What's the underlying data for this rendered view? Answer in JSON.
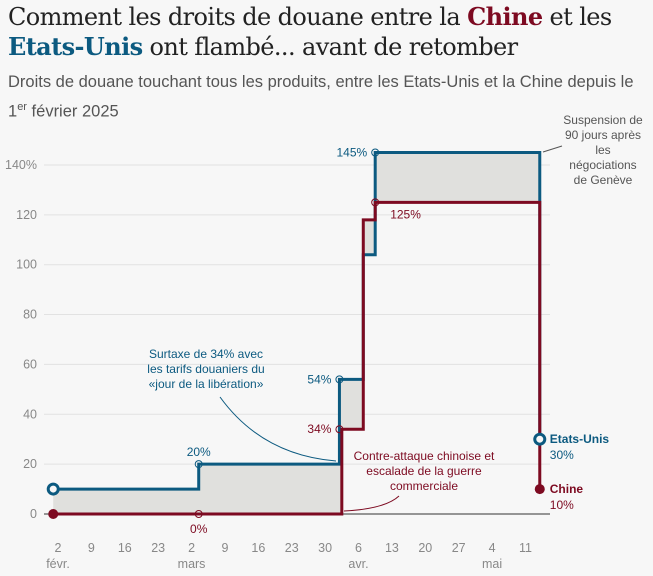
{
  "title": {
    "part1": "Comment les droits de douane entre la ",
    "china": "Chine",
    "part2": " et les ",
    "us": "Etats-Unis",
    "part3": " ont flambé... avant de retomber"
  },
  "subtitle": {
    "text": "Droits de douane touchant tous les produits, entre les Etats-Unis et la Chine depuis le 1",
    "sup": "er",
    "text2": " février 2025"
  },
  "colors": {
    "us": "#0c5a80",
    "china": "#7d0a21",
    "fill": "#e0e0dd",
    "grid": "#e2e2e2",
    "text": "#555555"
  },
  "chart_data": {
    "type": "line",
    "step": true,
    "title": "Comment les droits de douane entre la Chine et les Etats-Unis ont flambé... avant de retomber",
    "xlabel": "",
    "ylabel": "",
    "ylim": [
      0,
      145
    ],
    "xlim_days_from_feb2": [
      -1,
      101
    ],
    "y_ticks": [
      {
        "v": 0,
        "label": "0"
      },
      {
        "v": 20,
        "label": "20"
      },
      {
        "v": 40,
        "label": "40"
      },
      {
        "v": 60,
        "label": "60"
      },
      {
        "v": 80,
        "label": "80"
      },
      {
        "v": 100,
        "label": "100"
      },
      {
        "v": 120,
        "label": "120"
      },
      {
        "v": 140,
        "label": "140%"
      }
    ],
    "x_ticks": [
      {
        "d": 0,
        "label": "2",
        "month": "févr."
      },
      {
        "d": 7,
        "label": "9"
      },
      {
        "d": 14,
        "label": "16"
      },
      {
        "d": 21,
        "label": "23"
      },
      {
        "d": 28,
        "label": "2",
        "month": "mars"
      },
      {
        "d": 35,
        "label": "9"
      },
      {
        "d": 42,
        "label": "16"
      },
      {
        "d": 49,
        "label": "23"
      },
      {
        "d": 56,
        "label": "30"
      },
      {
        "d": 63,
        "label": "6",
        "month": "avr."
      },
      {
        "d": 70,
        "label": "13"
      },
      {
        "d": 77,
        "label": "20"
      },
      {
        "d": 84,
        "label": "27"
      },
      {
        "d": 91,
        "label": "4",
        "month": "mai"
      },
      {
        "d": 98,
        "label": "11"
      }
    ],
    "grid": true,
    "series": [
      {
        "name": "Etats-Unis",
        "final_label": "30%",
        "points": [
          [
            -1,
            10
          ],
          [
            29.5,
            20
          ],
          [
            59,
            54
          ],
          [
            64,
            104
          ],
          [
            66.5,
            145
          ],
          [
            101,
            30
          ]
        ]
      },
      {
        "name": "Chine",
        "final_label": "10%",
        "points": [
          [
            -1,
            0
          ],
          [
            59.5,
            34
          ],
          [
            64,
            118
          ],
          [
            66.5,
            125
          ],
          [
            101,
            10
          ]
        ]
      }
    ],
    "point_labels": [
      {
        "series": "us",
        "d": 29.5,
        "v": 20,
        "text": "20%"
      },
      {
        "series": "china",
        "d": 29.5,
        "v": 0,
        "text": "0%"
      },
      {
        "series": "us",
        "d": 59,
        "v": 54,
        "text": "54%"
      },
      {
        "series": "china",
        "d": 59,
        "v": 34,
        "text": "34%"
      },
      {
        "series": "us",
        "d": 66.5,
        "v": 145,
        "text": "145%"
      },
      {
        "series": "china",
        "d": 66.5,
        "v": 125,
        "text": "125%"
      }
    ],
    "annotations": [
      {
        "lines": [
          "Surtaxe de 34% avec",
          "les tarifs douaniers du",
          "«jour de la libération»"
        ],
        "color": "us"
      },
      {
        "lines": [
          "Contre-attaque chinoise et",
          "escalade de la guerre",
          "commerciale"
        ],
        "color": "china"
      },
      {
        "lines": [
          "Suspension de",
          "90 jours après",
          "les",
          "négociations",
          "de Genève"
        ],
        "color": "text"
      }
    ],
    "legend": "right-end-labels"
  }
}
